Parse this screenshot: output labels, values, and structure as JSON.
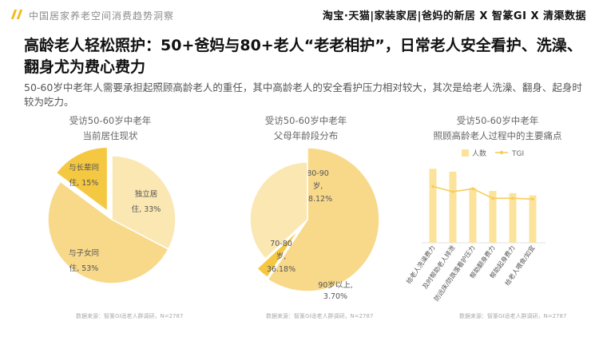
{
  "header": {
    "report_title": "中国居家养老空间消费趋势洞察",
    "brands": "淘宝·天猫|家装家居|爸妈的新居 X 智篆GI X 清渠数据"
  },
  "headline": "高龄老人轻松照护：50+爸妈与80+老人“老老相护”，日常老人安全看护、洗澡、翻身尤为费心费力",
  "description": "50-60岁中老年人需要承担起照顾高龄老人的重任，其中高龄老人的安全看护压力相对较大，其次是给老人洗澡、翻身、起身时较为吃力。",
  "colors": {
    "accent": "#f0b91c",
    "pie_dark": "#f5c842",
    "pie_mid": "#f8d98a",
    "pie_light": "#fbe7b2",
    "bar": "#fbe39c",
    "line": "#f6cd5a"
  },
  "chart_data": [
    {
      "type": "pie",
      "title_line1": "受访50-60岁中老年",
      "title_line2": "当前居住现状",
      "slices": [
        {
          "label_line1": "独立居",
          "label_line2": "住, 33%",
          "value": 33
        },
        {
          "label_line1": "与子女同",
          "label_line2": "住, 53%",
          "value": 53
        },
        {
          "label_line1": "与长辈同",
          "label_line2": "住, 15%",
          "value": 15
        }
      ],
      "source": "数据来源：智篆GI适老人群调研，N=2787"
    },
    {
      "type": "pie",
      "title_line1": "受访50-60岁中老年",
      "title_line2": "父母年龄段分布",
      "slices": [
        {
          "label_line1": "80-90",
          "label_line2": "岁,",
          "label_line3": "58.12%",
          "value": 58.12
        },
        {
          "label_line1": "90岁以上,",
          "label_line2": "3.70%",
          "value": 3.7
        },
        {
          "label_line1": "70-80",
          "label_line2": "岁,",
          "label_line3": "36.18%",
          "value": 36.18
        }
      ],
      "source": "数据来源：智篆GI适老人群调研，N=2787"
    },
    {
      "type": "bar",
      "title_line1": "受访50-60岁中老年",
      "title_line2": "照顾高龄老人过程中的主要痛点",
      "categories": [
        "给老人洗澡费力",
        "及时帮助老人排泄",
        "防远床/防跌落看护压力",
        "帮助翻身费力",
        "帮助起身费力",
        "给老人喂食/如宜"
      ],
      "series": [
        {
          "name": "人数",
          "type": "bar",
          "values": [
            100,
            96,
            74,
            70,
            67,
            64
          ]
        },
        {
          "name": "TGI",
          "type": "line",
          "values": [
            76,
            69,
            73,
            60,
            60,
            59
          ]
        }
      ],
      "ylim": [
        0,
        110
      ],
      "source": "数据来源：智篆GI适老人群调研，N=2787"
    }
  ]
}
